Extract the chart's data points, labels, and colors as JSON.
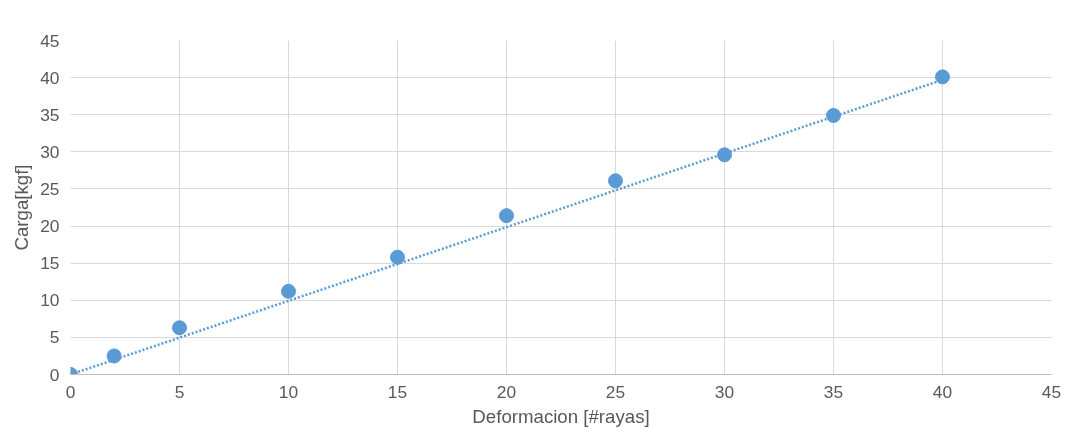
{
  "chart_data": {
    "type": "scatter",
    "xlabel": "Deformacion [#rayas]",
    "ylabel": "Carga[kgf]",
    "xlim": [
      0,
      45
    ],
    "ylim": [
      0,
      45
    ],
    "xticks": [
      0,
      5,
      10,
      15,
      20,
      25,
      30,
      35,
      40,
      45
    ],
    "yticks": [
      0,
      5,
      10,
      15,
      20,
      25,
      30,
      35,
      40,
      45
    ],
    "grid": true,
    "marker": "circle",
    "series": [
      {
        "color": "#5b9bd5",
        "x": [
          0,
          2,
          5,
          10,
          15,
          20,
          25,
          30,
          35,
          40
        ],
        "values": [
          0,
          2.5,
          6.3,
          11.2,
          15.8,
          21.4,
          26.1,
          29.6,
          34.9,
          40.1
        ]
      },
      {
        "type": "line",
        "color": "#5b9bd5",
        "line_style": "dotted",
        "marker": "none",
        "x": [
          0,
          40
        ],
        "values": [
          0,
          39.7
        ]
      }
    ]
  }
}
